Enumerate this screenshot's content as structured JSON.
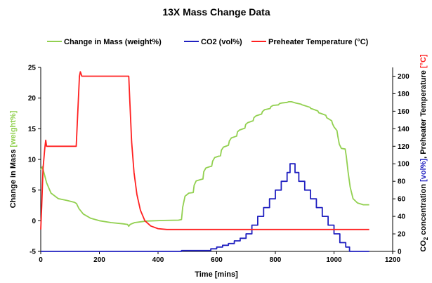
{
  "chart_data": {
    "type": "line",
    "title": "13X Mass Change Data",
    "xlabel": "Time [mins]",
    "ylabel_left": {
      "text": "Change in Mass",
      "colored_part": "[weight%]",
      "colored_color": "#92d050"
    },
    "ylabel_right": {
      "prefix": "CO",
      "subscript": "2",
      "mid": " concentration ",
      "part_blue": "[vol%]",
      "sep": ", Preheater Temperature ",
      "part_red": "[°C]"
    },
    "xlim": [
      0,
      1200
    ],
    "ylim_left": [
      -5,
      25
    ],
    "ylim_right": [
      0,
      210
    ],
    "xticks": [
      "0",
      "200",
      "400",
      "600",
      "800",
      "1000",
      "1200"
    ],
    "yticks_left": [
      "-5",
      "0",
      "5",
      "10",
      "15",
      "20",
      "25"
    ],
    "yticks_right": [
      "0",
      "20",
      "40",
      "60",
      "80",
      "100",
      "120",
      "140",
      "160",
      "180",
      "200"
    ],
    "grid": false,
    "legend_position": "top",
    "series": [
      {
        "name": "Change in Mass (weight%)",
        "axis": "left",
        "color": "#92d050",
        "points": [
          [
            0,
            8.3
          ],
          [
            5,
            8.8
          ],
          [
            10,
            8.0
          ],
          [
            20,
            6.2
          ],
          [
            35,
            4.5
          ],
          [
            60,
            3.6
          ],
          [
            90,
            3.3
          ],
          [
            115,
            3.0
          ],
          [
            122,
            2.8
          ],
          [
            130,
            2.0
          ],
          [
            145,
            1.1
          ],
          [
            170,
            0.4
          ],
          [
            200,
            0.0
          ],
          [
            240,
            -0.3
          ],
          [
            280,
            -0.5
          ],
          [
            296,
            -0.6
          ],
          [
            300,
            -0.9
          ],
          [
            305,
            -0.6
          ],
          [
            320,
            -0.3
          ],
          [
            360,
            -0.05
          ],
          [
            420,
            0.05
          ],
          [
            470,
            0.1
          ],
          [
            480,
            0.2
          ],
          [
            484,
            2.2
          ],
          [
            492,
            4.0
          ],
          [
            505,
            4.5
          ],
          [
            520,
            4.6
          ],
          [
            523,
            5.8
          ],
          [
            530,
            6.5
          ],
          [
            545,
            6.7
          ],
          [
            553,
            6.8
          ],
          [
            556,
            8.0
          ],
          [
            563,
            8.6
          ],
          [
            575,
            8.8
          ],
          [
            583,
            8.9
          ],
          [
            586,
            9.7
          ],
          [
            593,
            10.3
          ],
          [
            605,
            10.5
          ],
          [
            613,
            10.6
          ],
          [
            616,
            11.5
          ],
          [
            623,
            12.0
          ],
          [
            640,
            12.3
          ],
          [
            643,
            13.0
          ],
          [
            650,
            13.5
          ],
          [
            668,
            13.8
          ],
          [
            671,
            14.5
          ],
          [
            678,
            14.8
          ],
          [
            696,
            15.1
          ],
          [
            699,
            15.7
          ],
          [
            706,
            16.0
          ],
          [
            724,
            16.3
          ],
          [
            727,
            16.8
          ],
          [
            734,
            17.1
          ],
          [
            753,
            17.4
          ],
          [
            756,
            17.8
          ],
          [
            763,
            18.1
          ],
          [
            782,
            18.3
          ],
          [
            785,
            18.6
          ],
          [
            792,
            18.8
          ],
          [
            811,
            18.9
          ],
          [
            814,
            19.1
          ],
          [
            821,
            19.2
          ],
          [
            840,
            19.3
          ],
          [
            845,
            19.4
          ],
          [
            855,
            19.4
          ],
          [
            870,
            19.2
          ],
          [
            888,
            19.0
          ],
          [
            891,
            18.9
          ],
          [
            898,
            18.8
          ],
          [
            918,
            18.5
          ],
          [
            921,
            18.3
          ],
          [
            928,
            18.2
          ],
          [
            945,
            17.9
          ],
          [
            948,
            17.6
          ],
          [
            955,
            17.5
          ],
          [
            972,
            17.2
          ],
          [
            975,
            16.8
          ],
          [
            982,
            16.6
          ],
          [
            992,
            16.3
          ],
          [
            995,
            15.8
          ],
          [
            1000,
            15.3
          ],
          [
            1010,
            14.7
          ],
          [
            1013,
            13.8
          ],
          [
            1018,
            12.5
          ],
          [
            1025,
            11.8
          ],
          [
            1038,
            11.7
          ],
          [
            1042,
            10.5
          ],
          [
            1048,
            8.0
          ],
          [
            1055,
            5.5
          ],
          [
            1065,
            3.6
          ],
          [
            1080,
            2.9
          ],
          [
            1100,
            2.6
          ],
          [
            1120,
            2.6
          ]
        ]
      },
      {
        "name": "CO2 (vol%)",
        "axis": "right",
        "color": "#2020c0",
        "points": [
          [
            0,
            0
          ],
          [
            480,
            0
          ],
          [
            480,
            1
          ],
          [
            580,
            1
          ],
          [
            580,
            3
          ],
          [
            600,
            3
          ],
          [
            600,
            5
          ],
          [
            620,
            5
          ],
          [
            620,
            7
          ],
          [
            640,
            7
          ],
          [
            640,
            9
          ],
          [
            660,
            9
          ],
          [
            660,
            12
          ],
          [
            680,
            12
          ],
          [
            680,
            15
          ],
          [
            700,
            15
          ],
          [
            700,
            20
          ],
          [
            720,
            20
          ],
          [
            720,
            30
          ],
          [
            740,
            30
          ],
          [
            740,
            40
          ],
          [
            760,
            40
          ],
          [
            760,
            50
          ],
          [
            780,
            50
          ],
          [
            780,
            60
          ],
          [
            800,
            60
          ],
          [
            800,
            70
          ],
          [
            820,
            70
          ],
          [
            820,
            80
          ],
          [
            840,
            80
          ],
          [
            840,
            90
          ],
          [
            850,
            90
          ],
          [
            850,
            100
          ],
          [
            867,
            100
          ],
          [
            867,
            90
          ],
          [
            880,
            90
          ],
          [
            880,
            80
          ],
          [
            900,
            80
          ],
          [
            900,
            70
          ],
          [
            920,
            70
          ],
          [
            920,
            60
          ],
          [
            940,
            60
          ],
          [
            940,
            50
          ],
          [
            960,
            50
          ],
          [
            960,
            40
          ],
          [
            980,
            40
          ],
          [
            980,
            30
          ],
          [
            1000,
            30
          ],
          [
            1000,
            20
          ],
          [
            1020,
            20
          ],
          [
            1020,
            10
          ],
          [
            1040,
            10
          ],
          [
            1040,
            5
          ],
          [
            1053,
            5
          ],
          [
            1053,
            0
          ],
          [
            1120,
            0
          ]
        ]
      },
      {
        "name": "Preheater Temperature (°C)",
        "axis": "right",
        "color": "#ff2020",
        "points": [
          [
            0,
            25
          ],
          [
            3,
            50
          ],
          [
            8,
            95
          ],
          [
            14,
            118
          ],
          [
            17,
            127
          ],
          [
            20,
            120
          ],
          [
            25,
            120
          ],
          [
            121,
            120
          ],
          [
            132,
            200
          ],
          [
            135,
            205
          ],
          [
            140,
            200
          ],
          [
            300,
            200
          ],
          [
            304,
            170
          ],
          [
            310,
            125
          ],
          [
            318,
            90
          ],
          [
            328,
            65
          ],
          [
            340,
            47
          ],
          [
            355,
            35
          ],
          [
            375,
            29
          ],
          [
            400,
            26
          ],
          [
            430,
            25
          ],
          [
            1120,
            25
          ]
        ]
      }
    ]
  }
}
